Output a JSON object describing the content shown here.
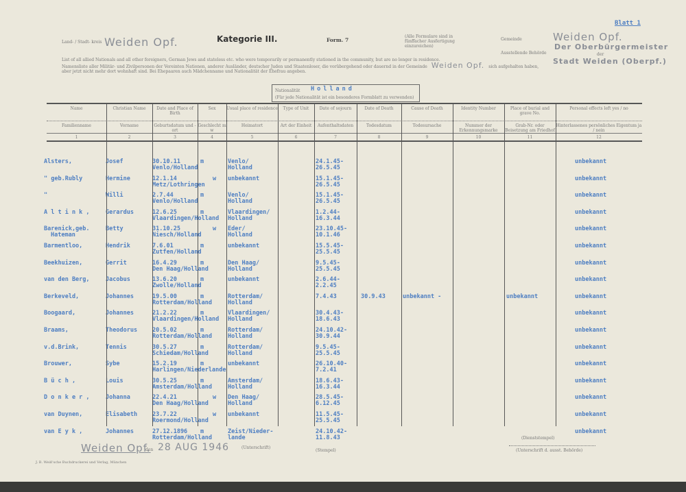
{
  "header": {
    "land_stadt_label": "Land- / Stadt- kreis",
    "kreis_value": "Weiden Opf.",
    "title": "Kategorie III.",
    "form": "Form. 7",
    "copies_note": "(Alle Formulare sind in fünffacher Ausfertigung einzureichen)",
    "blatt": "Blatt 1",
    "gemeinde_label": "Gemeinde",
    "gemeinde_value": "Weiden Opf.",
    "behoerde_label": "Ausstellende Behörde",
    "behoerde_stamp_1": "Der Oberbürgermeister",
    "behoerde_stamp_or": "der",
    "behoerde_stamp_2": "Stadt Weiden (Oberpf.)",
    "intro_en": "List of all allied Nationals and all other foreigners, German Jews and stateless etc. who were temporarily or permanently stationed in the community, but are no longer in residence.",
    "intro_de_1": "Namensliste aller Militär- und Zivilpersonen der Vereinten Nationen, anderer Ausländer, deutscher Juden und Staatenloser, die vorübergehend oder dauernd in der Gemeinde",
    "intro_gemeinde": "Weiden Opf.",
    "intro_de_1_end": "sich aufgehalten haben,",
    "intro_de_2": "aber jetzt nicht mehr dort wohnhaft sind. Bei Ehepaaren auch Mädchenname und Nationalität der Ehefrau angeben.",
    "nationality_label": "Nationalität",
    "nationality_value": "Holland",
    "nationality_note": "(Für jede Nationalität ist ein besonderes Formblatt zu verwenden)"
  },
  "columns": [
    {
      "en": "Name",
      "de": "Familienname",
      "no": "1"
    },
    {
      "en": "Christian Name",
      "de": "Vorname",
      "no": "2"
    },
    {
      "en": "Date and Place of Birth",
      "de": "Geburtsdatum und -ort",
      "no": "3"
    },
    {
      "en": "Sex",
      "de": "Geschlecht m w",
      "no": "4"
    },
    {
      "en": "Usual place of residence",
      "de": "Heimatort",
      "no": "5"
    },
    {
      "en": "Type of Unit",
      "de": "Art der Einheit",
      "no": "6"
    },
    {
      "en": "Date of sojourn",
      "de": "Aufenthaltsdaten",
      "no": "7"
    },
    {
      "en": "Date of Death",
      "de": "Todesdatum",
      "no": "8"
    },
    {
      "en": "Cause of Death",
      "de": "Todesursache",
      "no": "9"
    },
    {
      "en": "Identity Number",
      "de": "Nummer der Erkennungsmarke",
      "no": "10"
    },
    {
      "en": "Place of burial and grave No.",
      "de": "Grab-Nr. oder Beisetzung am Friedhof",
      "no": "11"
    },
    {
      "en": "Personal effects left yes / no",
      "de": "Hinterlassenes persönliches Eigentum ja / nein",
      "no": "12"
    }
  ],
  "rows": [
    {
      "name": "Alsters,",
      "first": "Josef",
      "birth1": "30.10.11",
      "birth2": "Venlo/Holland",
      "sex": "m",
      "res1": "Venlo/",
      "res2": "Holland",
      "stay1": "24.1.45-",
      "stay2": "26.5.45",
      "death": "",
      "cause": "",
      "burial": "",
      "effects": "unbekannt"
    },
    {
      "name": "\" geb.Rubly",
      "first": "Hermine",
      "birth1": "12.1.14",
      "birth2": "Metz/Lothringen",
      "sex": "w",
      "res1": "unbekannt",
      "res2": "",
      "stay1": "15.1.45-",
      "stay2": "26.5.45",
      "death": "",
      "cause": "",
      "burial": "",
      "effects": "unbekannt"
    },
    {
      "name": "\"",
      "first": "Willi",
      "birth1": "2.7.44",
      "birth2": "Venlo/Holland",
      "sex": "m",
      "res1": "Venlo/",
      "res2": "Holland",
      "stay1": "15.1.45-",
      "stay2": "26.5.45",
      "death": "",
      "cause": "",
      "burial": "",
      "effects": "unbekannt"
    },
    {
      "name": "A l t i n k ,",
      "first": "Gerardus",
      "birth1": "12.6.25",
      "birth2": "Vlaardingen/Holland",
      "sex": "m",
      "res1": "Vlaardingen/",
      "res2": " Holland",
      "stay1": "1.2.44-",
      "stay2": "16.3.44",
      "death": "",
      "cause": "",
      "burial": "",
      "effects": "unbekannt"
    },
    {
      "name": "Barenick,geb.",
      "name2": "Hateman",
      "first": "Betty",
      "birth1": "31.10.25",
      "birth2": "Niesch/Holland",
      "sex": "w",
      "res1": "Eder/",
      "res2": "Holland",
      "stay1": "23.10.45-",
      "stay2": "10.1.46",
      "death": "",
      "cause": "",
      "burial": "",
      "effects": "unbekannt"
    },
    {
      "name": "Barmentloo,",
      "first": "Hendrik",
      "birth1": "7.6.01",
      "birth2": "Zutfen/Holland",
      "sex": "m",
      "res1": "unbekannt",
      "res2": "",
      "stay1": "15.5.45-",
      "stay2": "25.5.45",
      "death": "",
      "cause": "",
      "burial": "",
      "effects": "unbekannt"
    },
    {
      "name": "Beekhuizen,",
      "first": "Gerrit",
      "birth1": "16.4.29",
      "birth2": "Den Haag/Holland",
      "sex": "m",
      "res1": "Den Haag/",
      "res2": "Holland",
      "stay1": "9.5.45-",
      "stay2": "25.5.45",
      "death": "",
      "cause": "",
      "burial": "",
      "effects": "unbekannt"
    },
    {
      "name": "van den Berg,",
      "first": "Jacobus",
      "birth1": "13.6.20",
      "birth2": "Zwolle/Holland",
      "sex": "m",
      "res1": "unbekannt",
      "res2": "",
      "stay1": "2.6.44-",
      "stay2": "2.2.45",
      "death": "",
      "cause": "",
      "burial": "",
      "effects": "unbekannt"
    },
    {
      "name": "Berkeveld,",
      "first": "Johannes",
      "birth1": "19.5.00",
      "birth2": "Rotterdam/Holland",
      "sex": "m",
      "res1": "Rotterdam/",
      "res2": "Holland",
      "stay1": "7.4.43",
      "stay2": "",
      "death": "30.9.43",
      "cause": "unbekannt -",
      "burial": "unbekannt",
      "effects": "unbekannt"
    },
    {
      "name": "Boogaard,",
      "first": "Johannes",
      "birth1": "21.2.22",
      "birth2": "Vlaardingen/Holland",
      "sex": "m",
      "res1": "Vlaardingen/",
      "res2": " Holland",
      "stay1": "30.4.43-",
      "stay2": "18.6.43",
      "death": "",
      "cause": "",
      "burial": "",
      "effects": "unbekannt"
    },
    {
      "name": "Braams,",
      "first": "Theodorus",
      "birth1": "20.5.02",
      "birth2": "Rotterdam/Holland",
      "sex": "m",
      "res1": "Rotterdam/",
      "res2": "Holland",
      "stay1": "24.10.42-",
      "stay2": "30.9.44",
      "death": "",
      "cause": "",
      "burial": "",
      "effects": "unbekannt"
    },
    {
      "name": "v.d.Brink,",
      "first": "Tennis",
      "birth1": "30.5.27",
      "birth2": "Schiedam/Holland",
      "sex": "m",
      "res1": "Rotterdam/",
      "res2": "Holland",
      "stay1": "9.5.45-",
      "stay2": "25.5.45",
      "death": "",
      "cause": "",
      "burial": "",
      "effects": "unbekannt"
    },
    {
      "name": "Brouwer,",
      "first": "Sybe",
      "birth1": "15.2.19",
      "birth2": "Harlingen/Niederlande",
      "sex": "m",
      "res1": "unbekannt",
      "res2": "",
      "stay1": "26.10.40-",
      "stay2": "7.2.41",
      "death": "",
      "cause": "",
      "burial": "",
      "effects": "unbekannt"
    },
    {
      "name": "B ü c h ,",
      "first": "Louis",
      "birth1": "30.5.25",
      "birth2": "Amsterdam/Holland",
      "sex": "m",
      "res1": "Amsterdam/",
      "res2": "Holland",
      "stay1": "18.6.43-",
      "stay2": "16.3.44",
      "death": "",
      "cause": "",
      "burial": "",
      "effects": "unbekannt"
    },
    {
      "name": "D o n k e r ,",
      "first": "Johanna",
      "birth1": "22.4.21",
      "birth2": "Den Haag/Holland",
      "sex": "w",
      "res1": "Den Haag/",
      "res2": "Holland",
      "stay1": "28.5.45-",
      "stay2": "6.12.45",
      "death": "",
      "cause": "",
      "burial": "",
      "effects": "unbekannt"
    },
    {
      "name": "van Duynen,",
      "first": "Elisabeth",
      "birth1": "23.7.22",
      "birth2": "Roermond/Holland",
      "sex": "w",
      "res1": "unbekannt",
      "res2": "",
      "stay1": "11.5.45-",
      "stay2": "25.5.45",
      "death": "",
      "cause": "",
      "burial": "",
      "effects": "unbekannt"
    },
    {
      "name": "van E y k ,",
      "first": "Johannes",
      "birth1": "27.12.1896",
      "birth2": "Rotterdam/Holland",
      "sex": "m",
      "res1": "Zeist/Nieder-",
      "res2": "lande",
      "stay1": "24.10.42-",
      "stay2": "11.8.43",
      "death": "",
      "cause": "",
      "burial": "",
      "effects": "unbekannt"
    }
  ],
  "footer": {
    "signature_label": "(Unterschrift)",
    "place": "Weiden Opf.",
    "den": "den",
    "date": "28 AUG 1946",
    "stamp_label": "(Stempel)",
    "dienststempel": "(Dienststempel)",
    "signature_right": "(Unterschrift d. ausst. Behörde)",
    "printer": "J. B. Weiß'sche Buchdruckerei und Verlag, München"
  }
}
